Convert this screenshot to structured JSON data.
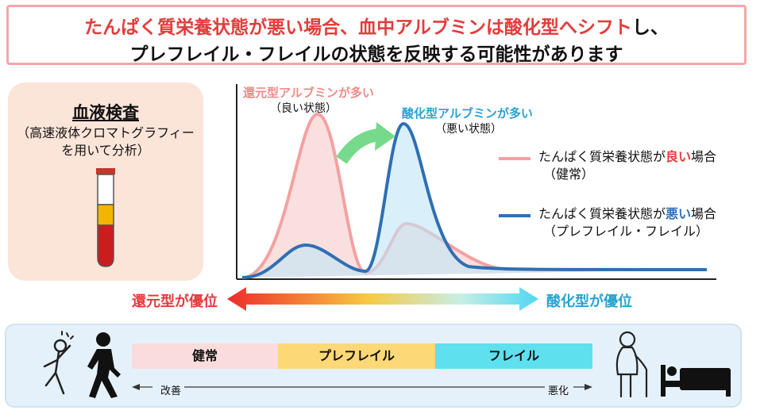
{
  "title": {
    "line1_part1": "たんぱく質栄養状態が悪い場合、血中アルブミンは酸化型へシフト",
    "line1_part2": "し、",
    "line2": "プレフレイル・フレイルの状態を反映する可能性があります"
  },
  "blood_test": {
    "title": "血液検査",
    "sub1": "（高速液体クロマトグラフィー",
    "sub2": "を用いて分析）"
  },
  "peaks": {
    "reduced_title": "還元型アルブミンが多い",
    "reduced_sub": "（良い状態）",
    "oxidized_title": "酸化型アルブミンが多い",
    "oxidized_sub": "（悪い状態）"
  },
  "legend": {
    "good_prefix": "たんぱく質栄養状態が",
    "good_word": "良い",
    "good_suffix": "場合",
    "good_sub": "（健常）",
    "bad_prefix": "たんぱく質栄養状態が",
    "bad_word": "悪い",
    "bad_suffix": "場合",
    "bad_sub": "（プレフレイル・フレイル）"
  },
  "gradient_arrow": {
    "left_label": "還元型が優位",
    "right_label": "酸化型が優位"
  },
  "stages": {
    "healthy": "健常",
    "prefrail": "プレフレイル",
    "frail": "フレイル",
    "improve": "改善",
    "worsen": "悪化"
  },
  "colors": {
    "red_accent": "#e33c3c",
    "pink_curve": "#f4a1a1",
    "blue_curve": "#2f6fb3",
    "cyan_label": "#27a3d0",
    "healthy_band": "#fadcdc",
    "prefrail_band": "#fcd877",
    "frail_band": "#5fe0ee"
  },
  "icons": [
    "blood-tube-icon",
    "green-curved-arrow-icon",
    "jumping-person-icon",
    "walking-person-icon",
    "elderly-cane-icon",
    "bed-person-icon"
  ]
}
